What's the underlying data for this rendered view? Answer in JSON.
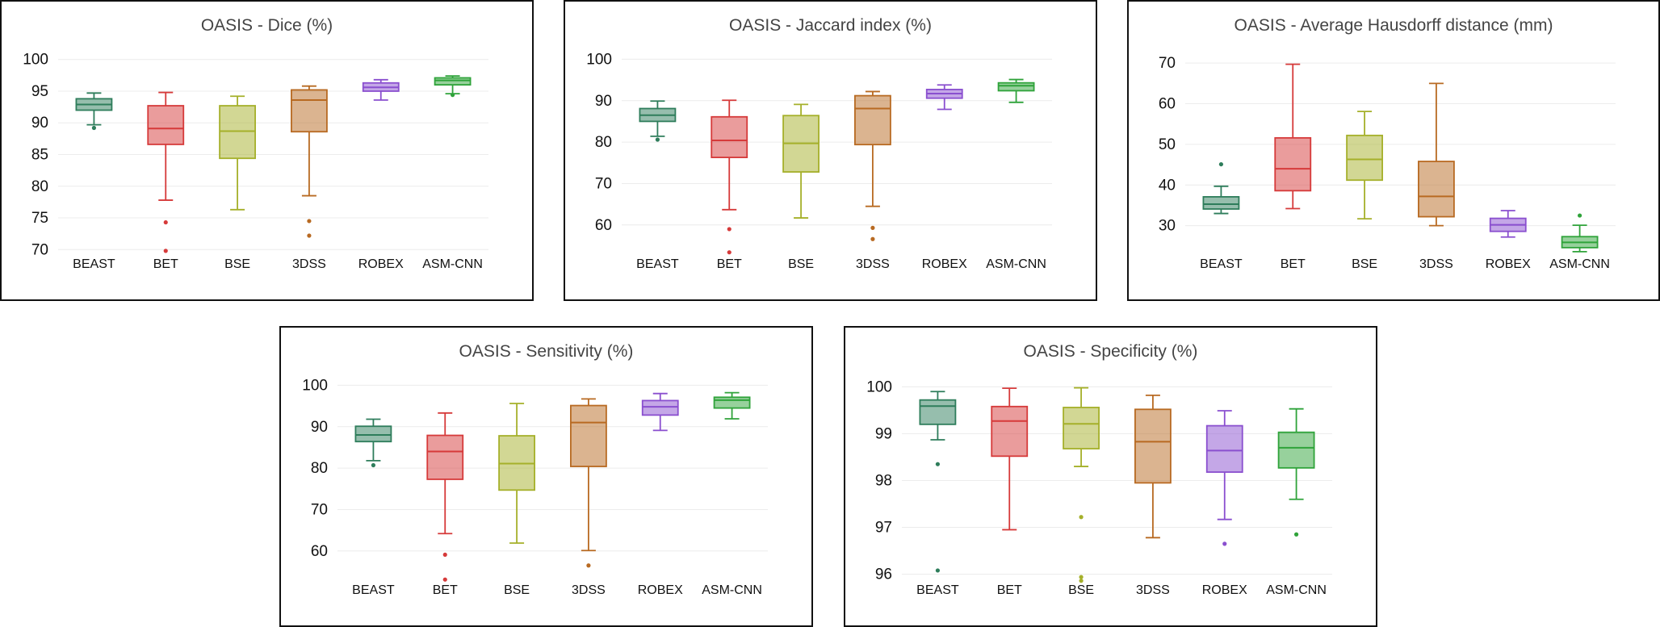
{
  "colors": {
    "BEAST": "#2e7d5b",
    "BET": "#d63a3a",
    "BSE": "#a5b02a",
    "3DSS": "#b86a22",
    "ROBEX": "#8a4fcf",
    "ASM-CNN": "#2fa33a"
  },
  "chart_data": [
    {
      "type": "box",
      "title": "OASIS - Dice (%)",
      "categories": [
        "BEAST",
        "BET",
        "BSE",
        "3DSS",
        "ROBEX",
        "ASM-CNN"
      ],
      "ylim": [
        68,
        102
      ],
      "yticks": [
        70,
        75,
        80,
        85,
        90,
        95,
        100
      ],
      "series": [
        {
          "name": "BEAST",
          "whisker_low": 89.7,
          "q1": 92.0,
          "median": 92.9,
          "q3": 93.8,
          "whisker_high": 94.7,
          "outliers": [
            89.2
          ]
        },
        {
          "name": "BET",
          "whisker_low": 77.8,
          "q1": 86.6,
          "median": 89.1,
          "q3": 92.7,
          "whisker_high": 94.8,
          "outliers": [
            74.3,
            69.8
          ]
        },
        {
          "name": "BSE",
          "whisker_low": 76.3,
          "q1": 84.4,
          "median": 88.7,
          "q3": 92.7,
          "whisker_high": 94.2,
          "outliers": []
        },
        {
          "name": "3DSS",
          "whisker_low": 78.5,
          "q1": 88.6,
          "median": 93.6,
          "q3": 95.2,
          "whisker_high": 95.8,
          "outliers": [
            74.5,
            72.2
          ]
        },
        {
          "name": "ROBEX",
          "whisker_low": 93.6,
          "q1": 95.0,
          "median": 95.6,
          "q3": 96.3,
          "whisker_high": 96.8,
          "outliers": []
        },
        {
          "name": "ASM-CNN",
          "whisker_low": 94.6,
          "q1": 96.0,
          "median": 96.7,
          "q3": 97.1,
          "whisker_high": 97.4,
          "outliers": [
            94.4
          ]
        }
      ]
    },
    {
      "type": "box",
      "title": "OASIS - Jaccard index (%)",
      "categories": [
        "BEAST",
        "BET",
        "BSE",
        "3DSS",
        "ROBEX",
        "ASM-CNN"
      ],
      "ylim": [
        51,
        103
      ],
      "yticks": [
        60,
        70,
        80,
        90,
        100
      ],
      "series": [
        {
          "name": "BEAST",
          "whisker_low": 81.4,
          "q1": 85.0,
          "median": 86.5,
          "q3": 88.1,
          "whisker_high": 89.9,
          "outliers": [
            80.6
          ]
        },
        {
          "name": "BET",
          "whisker_low": 63.7,
          "q1": 76.3,
          "median": 80.4,
          "q3": 86.1,
          "whisker_high": 90.1,
          "outliers": [
            59.0,
            53.4
          ]
        },
        {
          "name": "BSE",
          "whisker_low": 61.7,
          "q1": 72.8,
          "median": 79.7,
          "q3": 86.4,
          "whisker_high": 89.1,
          "outliers": []
        },
        {
          "name": "3DSS",
          "whisker_low": 64.5,
          "q1": 79.4,
          "median": 88.1,
          "q3": 91.2,
          "whisker_high": 92.2,
          "outliers": [
            59.3,
            56.6
          ]
        },
        {
          "name": "ROBEX",
          "whisker_low": 87.9,
          "q1": 90.6,
          "median": 91.7,
          "q3": 92.7,
          "whisker_high": 93.8,
          "outliers": []
        },
        {
          "name": "ASM-CNN",
          "whisker_low": 89.6,
          "q1": 92.4,
          "median": 93.6,
          "q3": 94.3,
          "whisker_high": 95.1,
          "outliers": []
        }
      ]
    },
    {
      "type": "box",
      "title": "OASIS - Average Hausdorff distance (mm)",
      "categories": [
        "BEAST",
        "BET",
        "BSE",
        "3DSS",
        "ROBEX",
        "ASM-CNN"
      ],
      "ylim": [
        21,
        74
      ],
      "yticks": [
        30,
        40,
        50,
        60,
        70
      ],
      "series": [
        {
          "name": "BEAST",
          "whisker_low": 33.0,
          "q1": 34.1,
          "median": 35.3,
          "q3": 37.1,
          "whisker_high": 39.7,
          "outliers": [
            45.1
          ]
        },
        {
          "name": "BET",
          "whisker_low": 34.2,
          "q1": 38.6,
          "median": 44.0,
          "q3": 51.6,
          "whisker_high": 69.7,
          "outliers": []
        },
        {
          "name": "BSE",
          "whisker_low": 31.7,
          "q1": 41.2,
          "median": 46.3,
          "q3": 52.2,
          "whisker_high": 58.1,
          "outliers": []
        },
        {
          "name": "3DSS",
          "whisker_low": 30.0,
          "q1": 32.2,
          "median": 37.2,
          "q3": 45.8,
          "whisker_high": 65.0,
          "outliers": []
        },
        {
          "name": "ROBEX",
          "whisker_low": 27.2,
          "q1": 28.6,
          "median": 30.2,
          "q3": 31.8,
          "whisker_high": 33.7,
          "outliers": []
        },
        {
          "name": "ASM-CNN",
          "whisker_low": 23.6,
          "q1": 24.6,
          "median": 25.9,
          "q3": 27.3,
          "whisker_high": 30.1,
          "outliers": [
            32.5
          ]
        }
      ]
    },
    {
      "type": "box",
      "title": "OASIS - Sensitivity (%)",
      "categories": [
        "BEAST",
        "BET",
        "BSE",
        "3DSS",
        "ROBEX",
        "ASM-CNN"
      ],
      "ylim": [
        51,
        103
      ],
      "yticks": [
        60,
        70,
        80,
        90,
        100
      ],
      "series": [
        {
          "name": "BEAST",
          "whisker_low": 81.8,
          "q1": 86.4,
          "median": 88.0,
          "q3": 90.1,
          "whisker_high": 91.8,
          "outliers": [
            80.7
          ]
        },
        {
          "name": "BET",
          "whisker_low": 64.2,
          "q1": 77.3,
          "median": 84.0,
          "q3": 87.9,
          "whisker_high": 93.3,
          "outliers": [
            59.1,
            53.1
          ]
        },
        {
          "name": "BSE",
          "whisker_low": 61.9,
          "q1": 74.7,
          "median": 81.1,
          "q3": 87.8,
          "whisker_high": 95.6,
          "outliers": []
        },
        {
          "name": "3DSS",
          "whisker_low": 60.1,
          "q1": 80.4,
          "median": 91.0,
          "q3": 95.1,
          "whisker_high": 96.7,
          "outliers": [
            56.5
          ]
        },
        {
          "name": "ROBEX",
          "whisker_low": 89.1,
          "q1": 92.8,
          "median": 94.8,
          "q3": 96.3,
          "whisker_high": 98.0,
          "outliers": []
        },
        {
          "name": "ASM-CNN",
          "whisker_low": 91.9,
          "q1": 94.5,
          "median": 96.4,
          "q3": 97.1,
          "whisker_high": 98.2,
          "outliers": []
        }
      ]
    },
    {
      "type": "box",
      "title": "OASIS - Specificity (%)",
      "categories": [
        "BEAST",
        "BET",
        "BSE",
        "3DSS",
        "ROBEX",
        "ASM-CNN"
      ],
      "ylim": [
        95.7,
        100.3
      ],
      "yticks": [
        96,
        97,
        98,
        99,
        100
      ],
      "series": [
        {
          "name": "BEAST",
          "whisker_low": 98.87,
          "q1": 99.2,
          "median": 99.59,
          "q3": 99.72,
          "whisker_high": 99.9,
          "outliers": [
            98.35,
            96.08
          ]
        },
        {
          "name": "BET",
          "whisker_low": 96.95,
          "q1": 98.52,
          "median": 99.27,
          "q3": 99.58,
          "whisker_high": 99.97,
          "outliers": []
        },
        {
          "name": "BSE",
          "whisker_low": 98.3,
          "q1": 98.68,
          "median": 99.21,
          "q3": 99.56,
          "whisker_high": 99.98,
          "outliers": [
            97.22,
            95.94,
            95.86
          ]
        },
        {
          "name": "3DSS",
          "whisker_low": 96.78,
          "q1": 97.95,
          "median": 98.83,
          "q3": 99.52,
          "whisker_high": 99.82,
          "outliers": []
        },
        {
          "name": "ROBEX",
          "whisker_low": 97.17,
          "q1": 98.18,
          "median": 98.64,
          "q3": 99.17,
          "whisker_high": 99.49,
          "outliers": [
            96.65
          ]
        },
        {
          "name": "ASM-CNN",
          "whisker_low": 97.6,
          "q1": 98.27,
          "median": 98.7,
          "q3": 99.03,
          "whisker_high": 99.53,
          "outliers": [
            96.85
          ]
        }
      ]
    }
  ]
}
